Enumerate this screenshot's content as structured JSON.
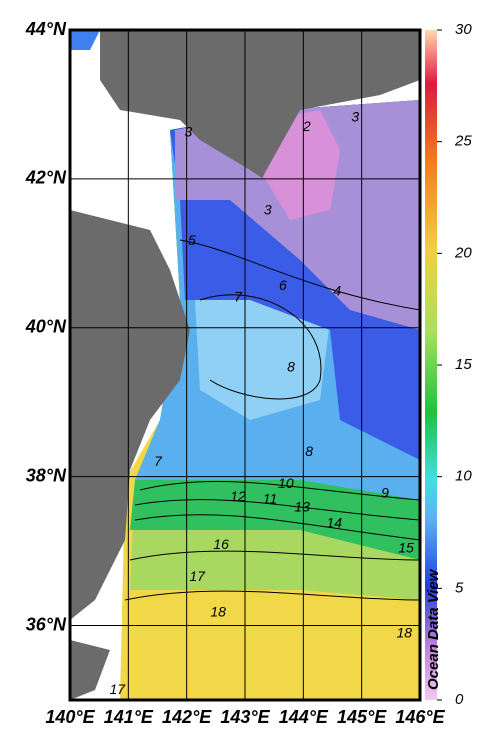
{
  "map": {
    "lon_ticks": [
      {
        "value": 140,
        "label": "140°E"
      },
      {
        "value": 141,
        "label": "141°E"
      },
      {
        "value": 142,
        "label": "142°E"
      },
      {
        "value": 143,
        "label": "143°E"
      },
      {
        "value": 144,
        "label": "144°E"
      },
      {
        "value": 145,
        "label": "145°E"
      },
      {
        "value": 146,
        "label": "146°E"
      }
    ],
    "lat_ticks": [
      {
        "value": 36,
        "label": "36°N"
      },
      {
        "value": 38,
        "label": "38°N"
      },
      {
        "value": 40,
        "label": "40°N"
      },
      {
        "value": 42,
        "label": "42°N"
      },
      {
        "value": 44,
        "label": "44°N"
      }
    ],
    "lonlim": [
      140,
      146
    ],
    "latlim": [
      35,
      44
    ],
    "colorbar": {
      "lim": [
        0,
        30
      ],
      "ticks": [
        0,
        5,
        10,
        15,
        20,
        25,
        30
      ]
    },
    "contour_labels": [
      {
        "value": 3,
        "lon": 142.03,
        "lat": 42.62
      },
      {
        "value": 2,
        "lon": 144.06,
        "lat": 42.69
      },
      {
        "value": 3,
        "lon": 144.89,
        "lat": 42.82
      },
      {
        "value": 3,
        "lon": 143.39,
        "lat": 41.57
      },
      {
        "value": 5,
        "lon": 142.09,
        "lat": 41.16
      },
      {
        "value": 6,
        "lon": 143.65,
        "lat": 40.56
      },
      {
        "value": 4,
        "lon": 144.58,
        "lat": 40.48
      },
      {
        "value": 7,
        "lon": 142.88,
        "lat": 40.4
      },
      {
        "value": 8,
        "lon": 143.79,
        "lat": 39.46
      },
      {
        "value": 8,
        "lon": 144.1,
        "lat": 38.33
      },
      {
        "value": 7,
        "lon": 141.51,
        "lat": 38.19
      },
      {
        "value": 10,
        "lon": 143.7,
        "lat": 37.9
      },
      {
        "value": 9,
        "lon": 145.4,
        "lat": 37.77
      },
      {
        "value": 12,
        "lon": 142.88,
        "lat": 37.72
      },
      {
        "value": 11,
        "lon": 143.43,
        "lat": 37.69
      },
      {
        "value": 13,
        "lon": 143.98,
        "lat": 37.58
      },
      {
        "value": 14,
        "lon": 144.53,
        "lat": 37.37
      },
      {
        "value": 16,
        "lon": 142.59,
        "lat": 37.08
      },
      {
        "value": 15,
        "lon": 145.76,
        "lat": 37.03
      },
      {
        "value": 17,
        "lon": 142.18,
        "lat": 36.65
      },
      {
        "value": 18,
        "lon": 142.54,
        "lat": 36.17
      },
      {
        "value": 18,
        "lon": 145.73,
        "lat": 35.89
      },
      {
        "value": 17,
        "lon": 140.81,
        "lat": 35.13
      }
    ],
    "credit": "Ocean Data View"
  }
}
